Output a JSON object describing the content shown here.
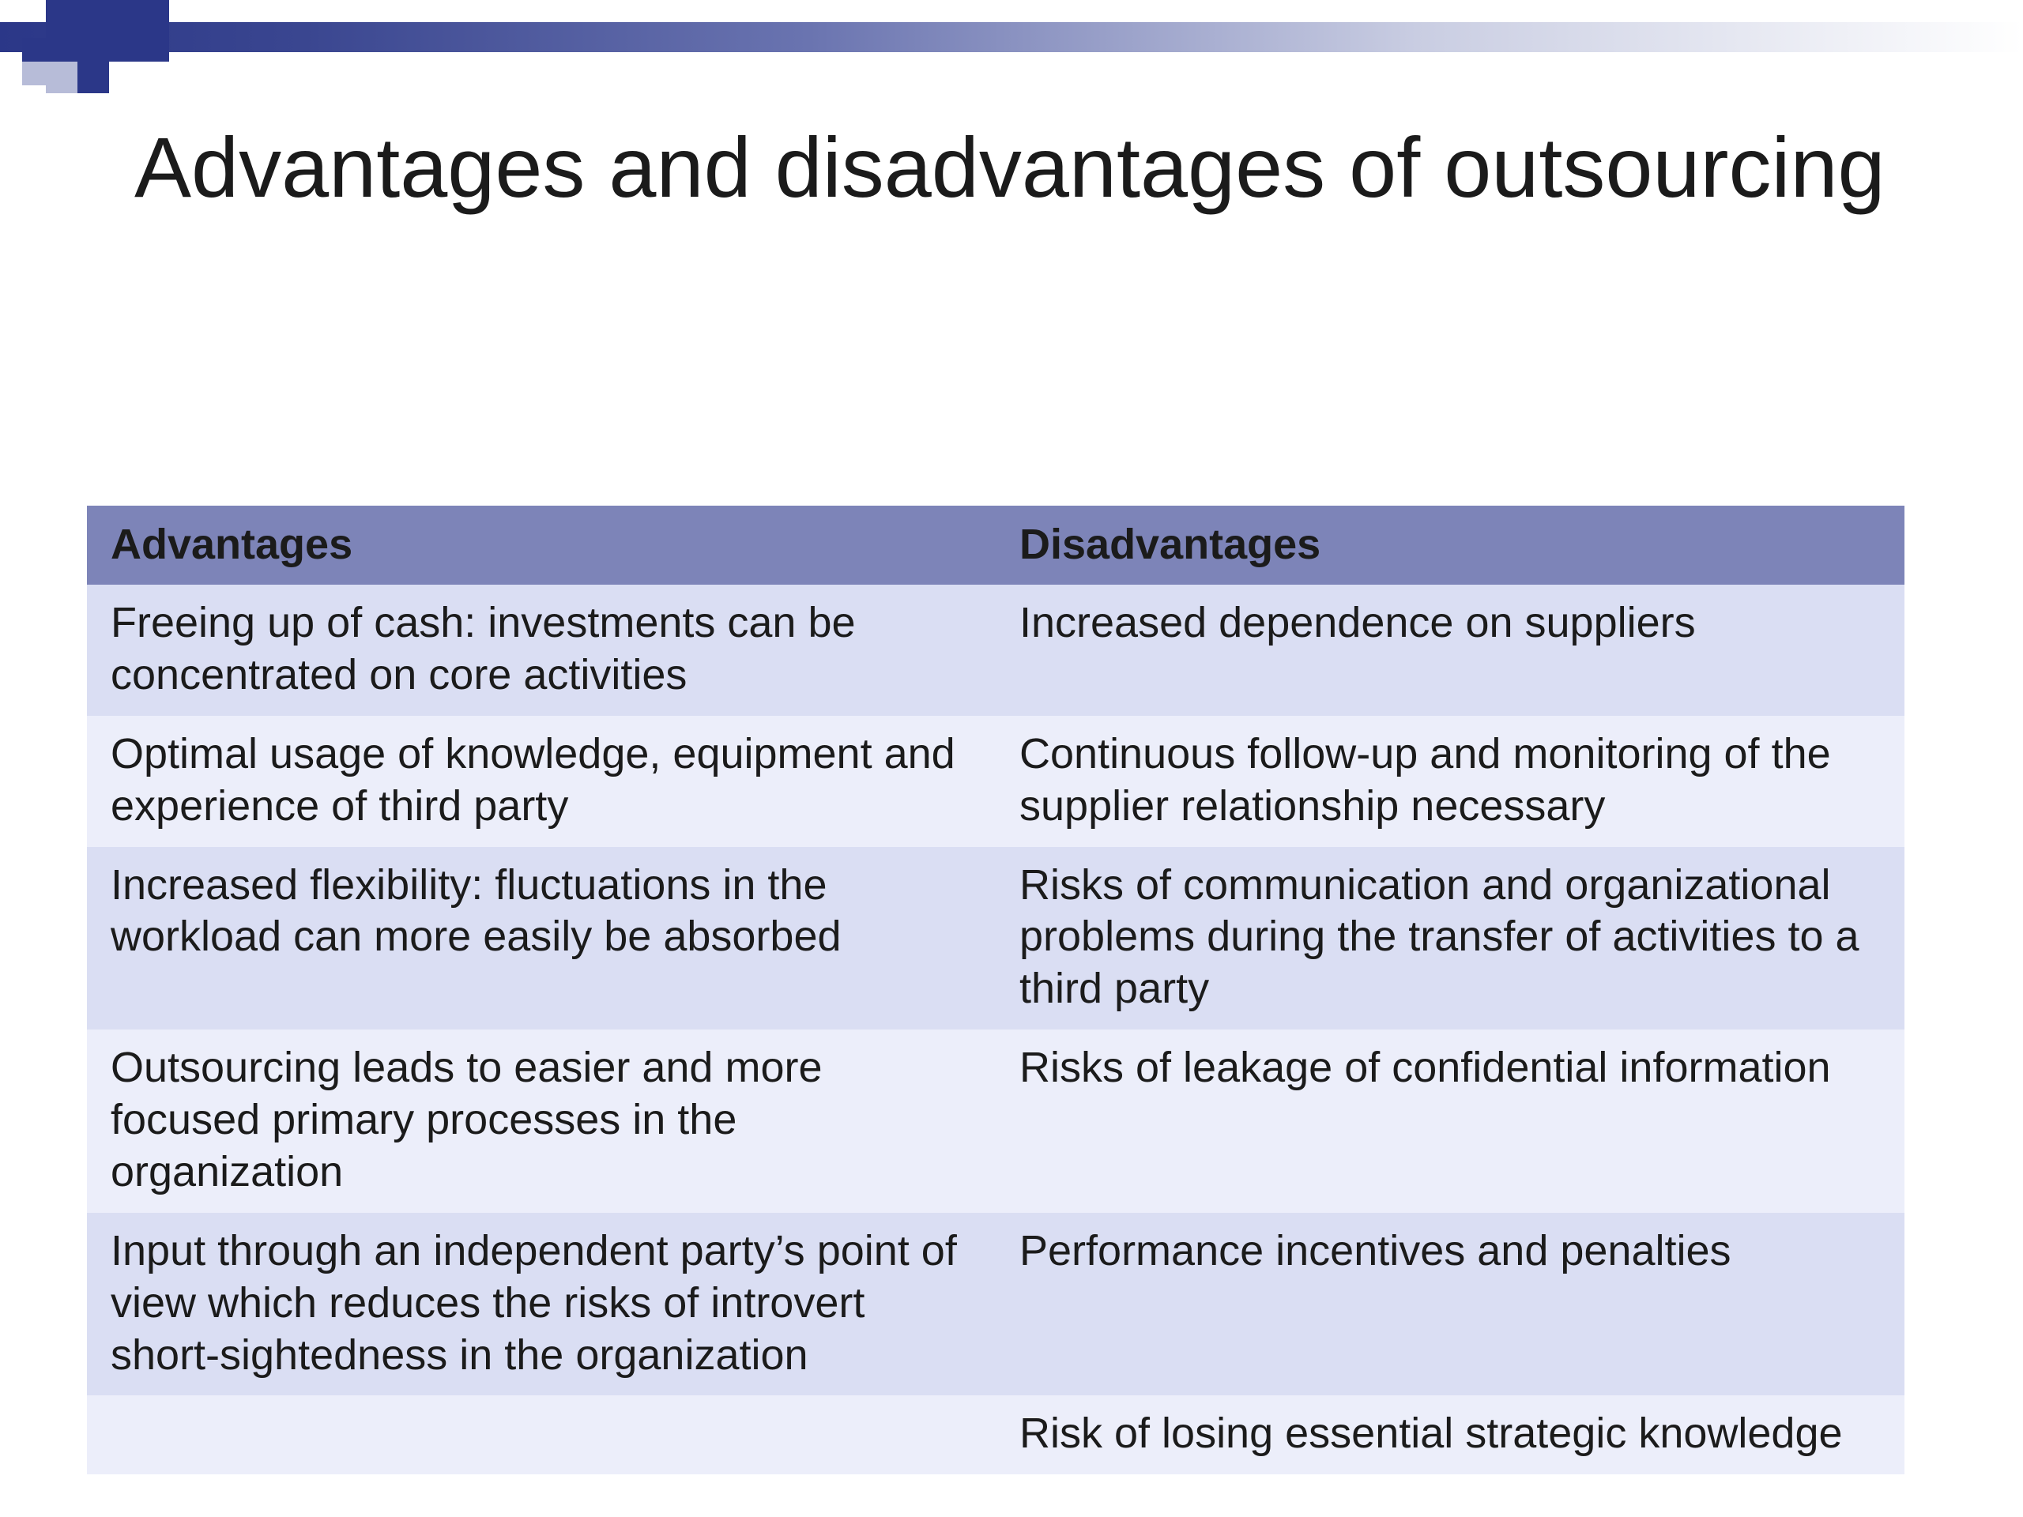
{
  "title": "Advantages and disadvantages of outsourcing",
  "table": {
    "header_color": "#7d84b8",
    "row_color_light": "#eceefa",
    "row_color_dark": "#dadef3",
    "columns": [
      "Advantages",
      "Disadvantages"
    ],
    "rows": [
      [
        "Freeing up of cash: investments can be concentrated on core activities",
        "Increased dependence on suppliers"
      ],
      [
        "Optimal usage of knowledge, equipment and experience of third party",
        "Continuous follow-up and monitoring of the supplier relationship necessary"
      ],
      [
        "Increased flexibility: fluctuations in the workload can more easily be absorbed",
        "Risks of communication and organizational problems during the transfer of activities to a third party"
      ],
      [
        "Outsourcing leads to easier and more focused primary processes in the organization",
        "Risks of leakage of confidential information"
      ],
      [
        "Input through an independent party’s point of view which reduces the risks of introvert short-sightedness in the organization",
        "Performance incentives and penalties"
      ],
      [
        "",
        "Risk of losing essential strategic knowledge"
      ]
    ]
  },
  "colors": {
    "accent_dark": "#2b3788",
    "accent_light": "#b7bcd8",
    "text": "#1b1b1b",
    "background": "#ffffff"
  }
}
